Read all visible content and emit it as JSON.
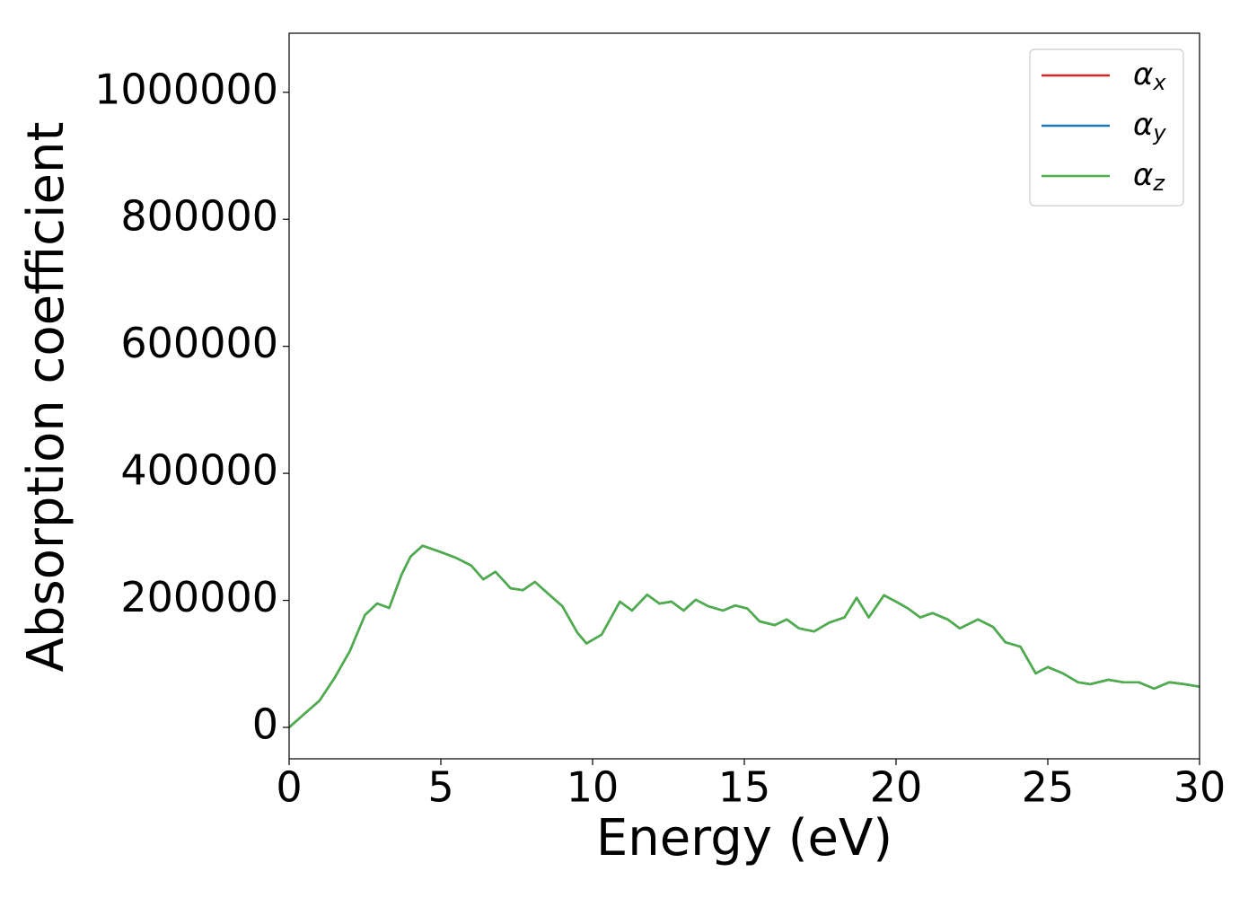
{
  "chart_data": {
    "type": "line",
    "xlabel": "Energy (eV)",
    "ylabel": "Absorption coefficient",
    "x": [
      0,
      0.5,
      1.0,
      1.5,
      2.0,
      2.5,
      2.9,
      3.3,
      3.7,
      4.0,
      4.4,
      5.0,
      5.5,
      6.0,
      6.4,
      6.8,
      7.3,
      7.7,
      8.1,
      8.5,
      9.0,
      9.5,
      9.8,
      10.3,
      10.9,
      11.3,
      11.8,
      12.2,
      12.6,
      13.0,
      13.4,
      13.8,
      14.3,
      14.7,
      15.1,
      15.5,
      16.0,
      16.4,
      16.8,
      17.3,
      17.8,
      18.3,
      18.7,
      19.1,
      19.6,
      20.0,
      20.4,
      20.8,
      21.2,
      21.7,
      22.1,
      22.7,
      23.2,
      23.6,
      24.1,
      24.6,
      25.0,
      25.5,
      26.0,
      26.4,
      27.0,
      27.5,
      28.0,
      28.5,
      29.0,
      29.5,
      30.0
    ],
    "series": [
      {
        "name": "αx",
        "color": "#d62728",
        "values": [
          0,
          21000,
          42000,
          78000,
          120000,
          177000,
          195000,
          188000,
          240000,
          269000,
          286000,
          276000,
          267000,
          255000,
          233000,
          245000,
          219000,
          216000,
          229000,
          212000,
          191000,
          149000,
          132000,
          146000,
          198000,
          184000,
          209000,
          195000,
          198000,
          184000,
          201000,
          191000,
          184000,
          192000,
          187000,
          167000,
          161000,
          170000,
          156000,
          151000,
          165000,
          173000,
          204000,
          173000,
          208000,
          198000,
          187000,
          173000,
          180000,
          170000,
          156000,
          170000,
          158000,
          134000,
          127000,
          85000,
          95000,
          85000,
          71000,
          68000,
          75000,
          71000,
          71000,
          61000,
          71000,
          68000,
          64000
        ]
      },
      {
        "name": "αy",
        "color": "#1f77b4",
        "values": [
          0,
          21000,
          42000,
          78000,
          120000,
          177000,
          195000,
          188000,
          240000,
          269000,
          286000,
          276000,
          267000,
          255000,
          233000,
          245000,
          219000,
          216000,
          229000,
          212000,
          191000,
          149000,
          132000,
          146000,
          198000,
          184000,
          209000,
          195000,
          198000,
          184000,
          201000,
          191000,
          184000,
          192000,
          187000,
          167000,
          161000,
          170000,
          156000,
          151000,
          165000,
          173000,
          204000,
          173000,
          208000,
          198000,
          187000,
          173000,
          180000,
          170000,
          156000,
          170000,
          158000,
          134000,
          127000,
          85000,
          95000,
          85000,
          71000,
          68000,
          75000,
          71000,
          71000,
          61000,
          71000,
          68000,
          64000
        ]
      },
      {
        "name": "αz",
        "color": "#4daf4a",
        "values": [
          0,
          21000,
          42000,
          78000,
          120000,
          177000,
          195000,
          188000,
          240000,
          269000,
          286000,
          276000,
          267000,
          255000,
          233000,
          245000,
          219000,
          216000,
          229000,
          212000,
          191000,
          149000,
          132000,
          146000,
          198000,
          184000,
          209000,
          195000,
          198000,
          184000,
          201000,
          191000,
          184000,
          192000,
          187000,
          167000,
          161000,
          170000,
          156000,
          151000,
          165000,
          173000,
          204000,
          173000,
          208000,
          198000,
          187000,
          173000,
          180000,
          170000,
          156000,
          170000,
          158000,
          134000,
          127000,
          85000,
          95000,
          85000,
          71000,
          68000,
          75000,
          71000,
          71000,
          61000,
          71000,
          68000,
          64000
        ]
      }
    ],
    "xlim": [
      0,
      30
    ],
    "xticks": [
      0,
      5,
      10,
      15,
      20,
      25,
      30
    ],
    "ylim": [
      -49500,
      1093000
    ],
    "yticks": [
      0,
      200000,
      400000,
      600000,
      800000,
      1000000
    ],
    "grid": false,
    "legend": "upper right"
  }
}
